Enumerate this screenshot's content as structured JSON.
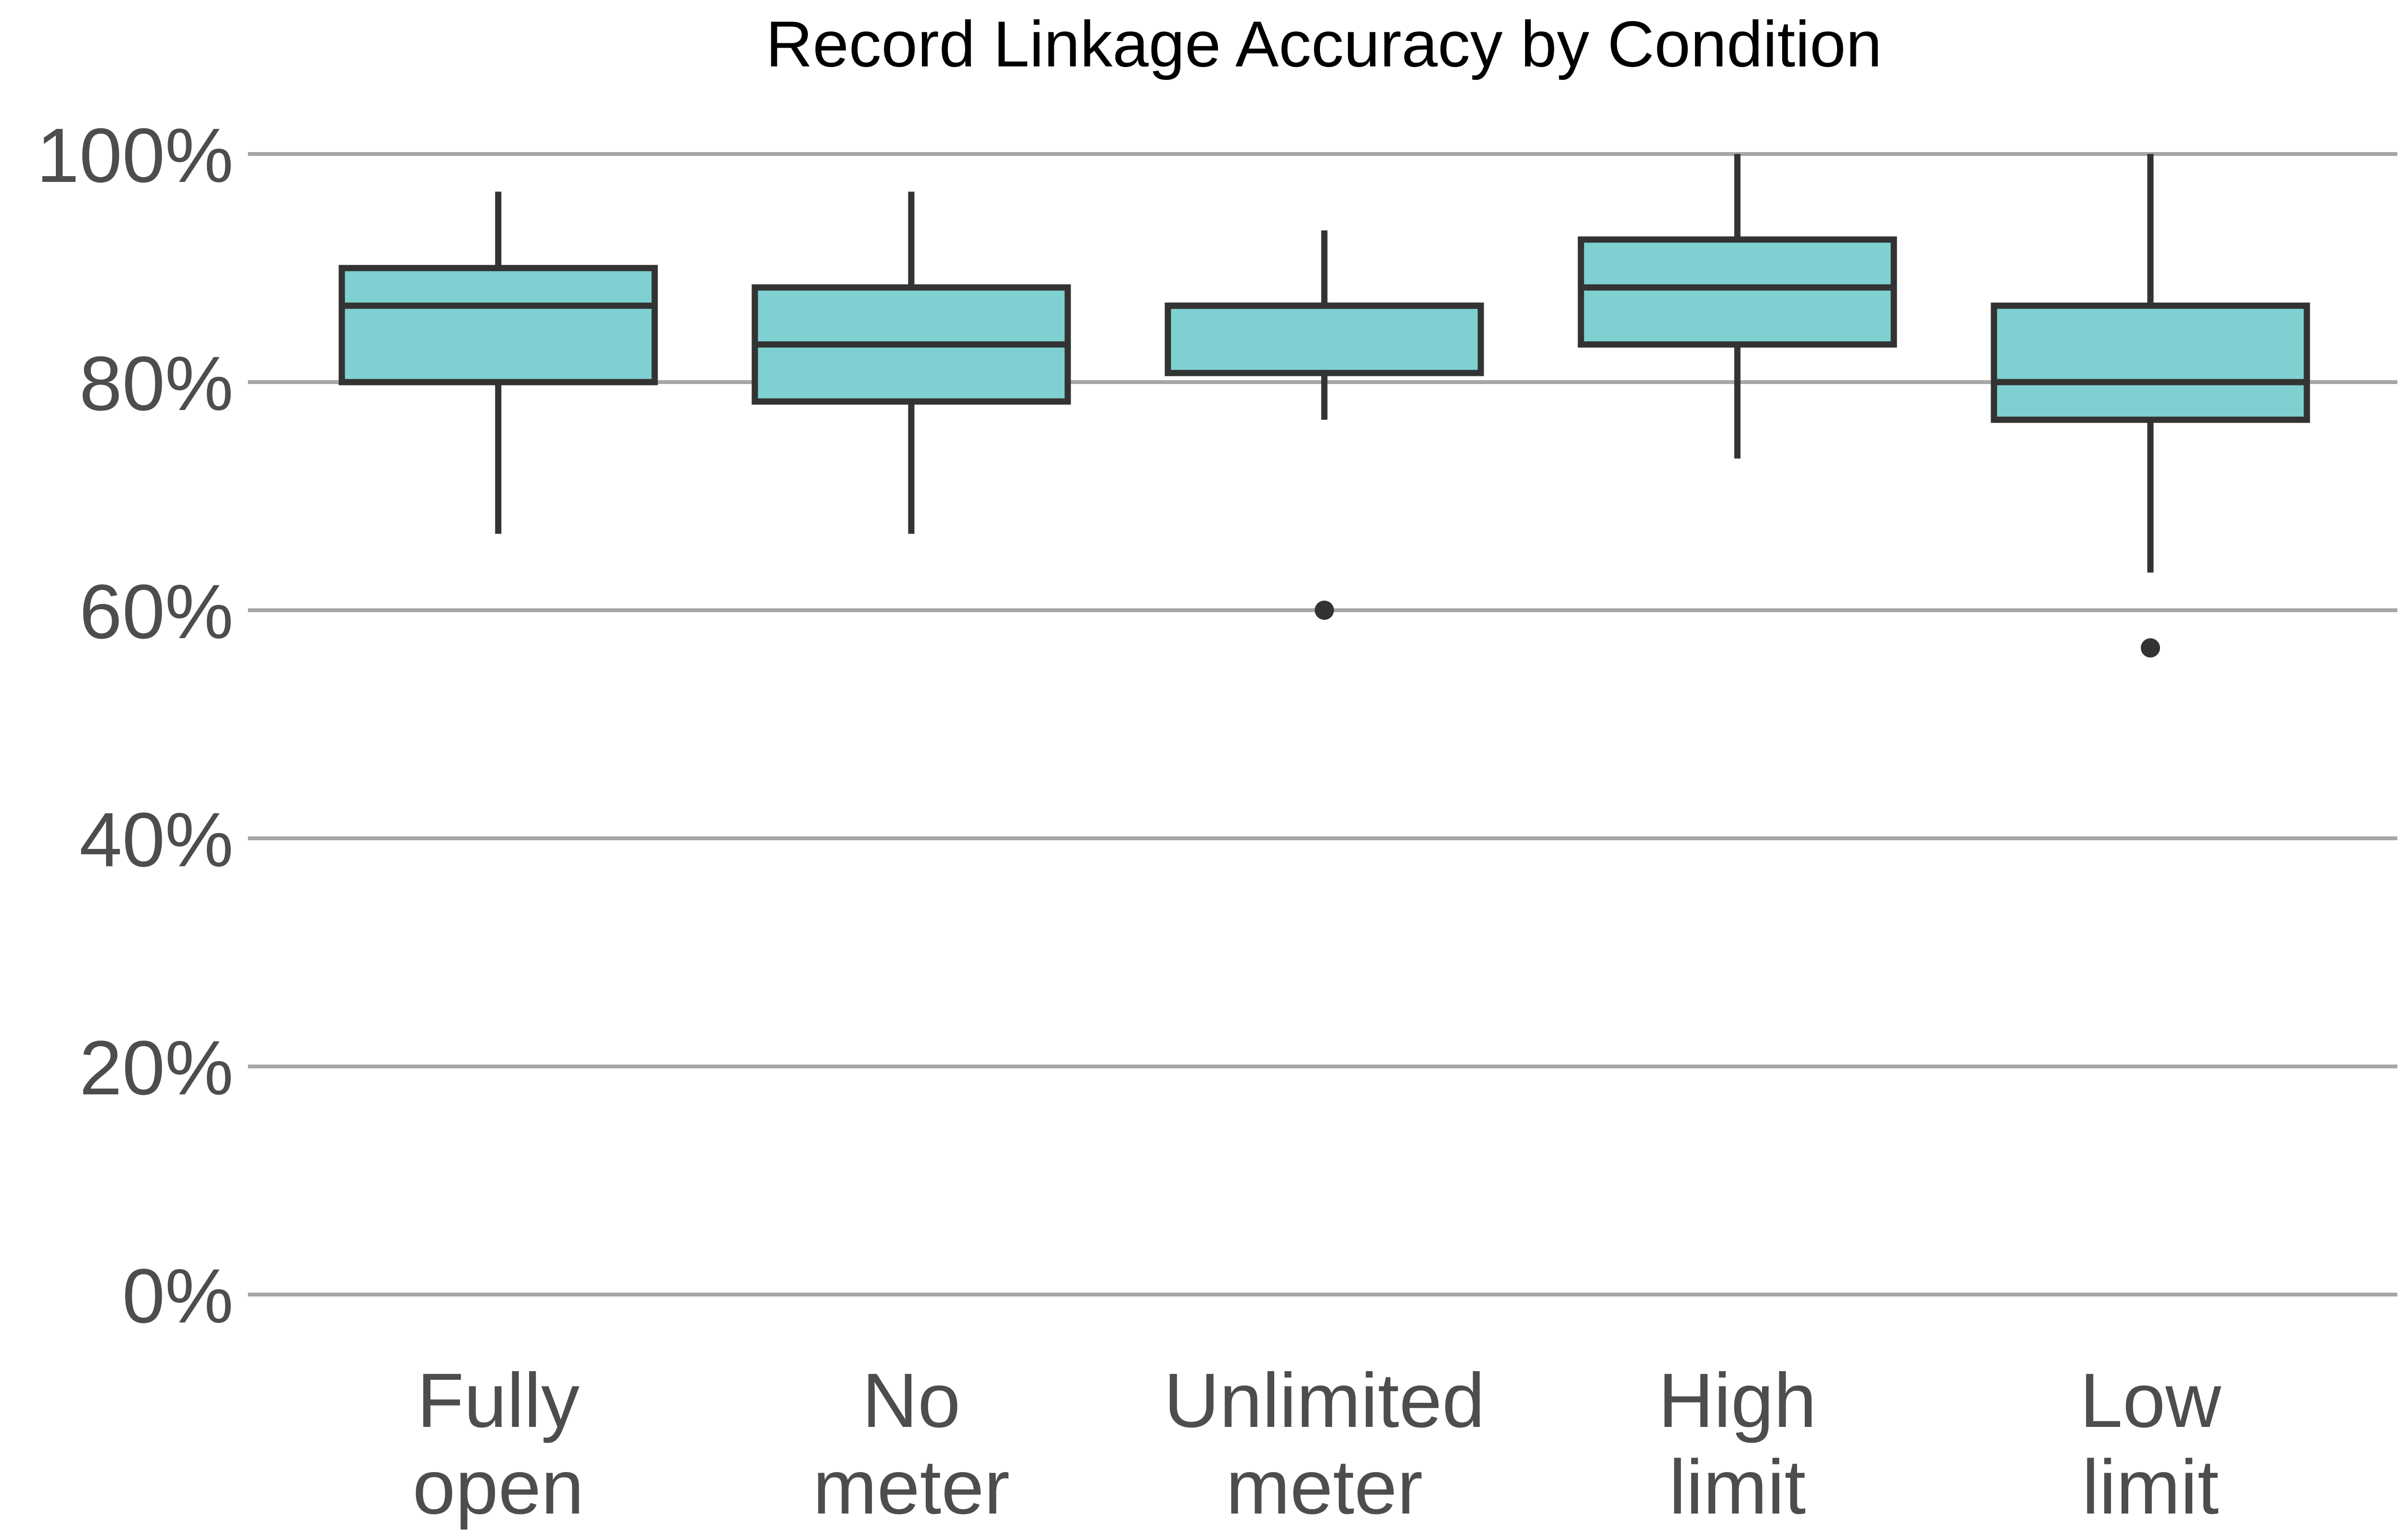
{
  "chart_data": {
    "type": "boxplot",
    "title": "Record Linkage Accuracy by Condition",
    "xlabel": "",
    "ylabel": "",
    "ylim": [
      0,
      100
    ],
    "yticks": [
      0,
      20,
      40,
      60,
      80,
      100
    ],
    "ytick_labels": [
      "0%",
      "20%",
      "40%",
      "60%",
      "80%",
      "100%"
    ],
    "grid": "horizontal",
    "categories": [
      [
        "Fully",
        "open"
      ],
      [
        "No",
        "meter"
      ],
      [
        "Unlimited",
        "meter"
      ],
      [
        "High",
        "limit"
      ],
      [
        "Low",
        "limit"
      ]
    ],
    "boxes": [
      {
        "whisker_low": 66.7,
        "q1": 80.0,
        "median": 86.7,
        "q3": 90.0,
        "whisker_high": 96.7,
        "outliers": []
      },
      {
        "whisker_low": 66.7,
        "q1": 78.3,
        "median": 83.3,
        "q3": 88.3,
        "whisker_high": 96.7,
        "outliers": []
      },
      {
        "whisker_low": 76.7,
        "q1": 80.8,
        "median": 86.7,
        "q3": 86.7,
        "whisker_high": 93.3,
        "outliers": [
          60.0
        ]
      },
      {
        "whisker_low": 73.3,
        "q1": 83.3,
        "median": 88.3,
        "q3": 92.5,
        "whisker_high": 100.0,
        "outliers": []
      },
      {
        "whisker_low": 63.3,
        "q1": 76.7,
        "median": 80.0,
        "q3": 86.7,
        "whisker_high": 100.0,
        "outliers": [
          56.7
        ]
      }
    ],
    "colors": {
      "box_fill": "#7fd1d1",
      "box_stroke": "#333333",
      "grid": "#a6a6a6",
      "outlier": "#333333",
      "tick_text": "#4d4d4d"
    }
  }
}
